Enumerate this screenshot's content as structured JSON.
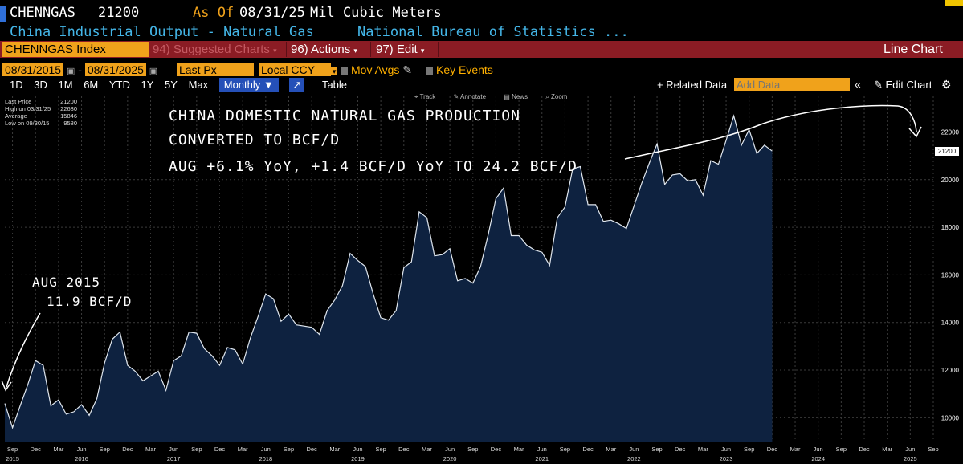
{
  "header": {
    "ticker": "CHENNGAS",
    "last_value": "21200",
    "as_of_label": "As Of",
    "as_of_date": "08/31/25",
    "units": "Mil Cubic Meters",
    "description": "China Industrial Output - Natural Gas",
    "source": "National Bureau of Statistics ..."
  },
  "menubar": {
    "index_name": "CHENNGAS Index",
    "suggested": "94) Suggested Charts",
    "actions": "96) Actions",
    "edit": "97) Edit",
    "chart_type": "Line Chart"
  },
  "controls": {
    "start_date": "08/31/2015",
    "end_date": "08/31/2025",
    "field": "Last Px",
    "currency": "Local CCY",
    "mov_avgs": "Mov Avgs",
    "key_events": "Key Events"
  },
  "toolbar": {
    "periods": [
      "1D",
      "3D",
      "1M",
      "6M",
      "YTD",
      "1Y",
      "5Y",
      "Max"
    ],
    "frequency": "Monthly",
    "table": "Table",
    "related": "+ Related Data",
    "add_data_placeholder": "Add Data",
    "edit_chart": "Edit Chart"
  },
  "chart_tools": [
    "Track",
    "Annotate",
    "News",
    "Zoom"
  ],
  "legend": {
    "rows": [
      {
        "label": "Last Price",
        "value": "21200"
      },
      {
        "label": "High on 03/31/25",
        "value": "22680"
      },
      {
        "label": "Average",
        "value": "15846"
      },
      {
        "label": "Low on 09/30/15",
        "value": "9580"
      }
    ]
  },
  "annotations": {
    "line1": "CHINA DOMESTIC NATURAL GAS PRODUCTION",
    "line2": "CONVERTED TO BCF/D",
    "line3": "AUG +6.1% YoY, +1.4 BCF/D YoY TO 24.2 BCF/D",
    "left1": "AUG 2015",
    "left2": "11.9 BCF/D"
  },
  "colors": {
    "line": "#dfe6ee",
    "fill": "#0e2240",
    "grid": "#3a3a3a",
    "price_tag": "#ffffff"
  },
  "chart_data": {
    "type": "area",
    "title": "China Industrial Output - Natural Gas",
    "ylabel": "Mil Cubic Meters",
    "ylim": [
      9000,
      23500
    ],
    "y_ticks": [
      10000,
      12000,
      14000,
      16000,
      18000,
      20000,
      22000
    ],
    "last_price_tag": "21200",
    "x_start": "2015-08",
    "x_ticks": [
      {
        "month": "Sep",
        "year": "2015",
        "i": 1
      },
      {
        "month": "Dec",
        "year": "",
        "i": 4
      },
      {
        "month": "Mar",
        "year": "",
        "i": 7
      },
      {
        "month": "Jun",
        "year": "2016",
        "i": 10
      },
      {
        "month": "Sep",
        "year": "",
        "i": 13
      },
      {
        "month": "Dec",
        "year": "",
        "i": 16
      },
      {
        "month": "Mar",
        "year": "",
        "i": 19
      },
      {
        "month": "Jun",
        "year": "2017",
        "i": 22
      },
      {
        "month": "Sep",
        "year": "",
        "i": 25
      },
      {
        "month": "Dec",
        "year": "",
        "i": 28
      },
      {
        "month": "Mar",
        "year": "",
        "i": 31
      },
      {
        "month": "Jun",
        "year": "2018",
        "i": 34
      },
      {
        "month": "Sep",
        "year": "",
        "i": 37
      },
      {
        "month": "Dec",
        "year": "",
        "i": 40
      },
      {
        "month": "Mar",
        "year": "",
        "i": 43
      },
      {
        "month": "Jun",
        "year": "2019",
        "i": 46
      },
      {
        "month": "Sep",
        "year": "",
        "i": 49
      },
      {
        "month": "Dec",
        "year": "",
        "i": 52
      },
      {
        "month": "Mar",
        "year": "",
        "i": 55
      },
      {
        "month": "Jun",
        "year": "2020",
        "i": 58
      },
      {
        "month": "Sep",
        "year": "",
        "i": 61
      },
      {
        "month": "Dec",
        "year": "",
        "i": 64
      },
      {
        "month": "Mar",
        "year": "",
        "i": 67
      },
      {
        "month": "Jun",
        "year": "2021",
        "i": 70
      },
      {
        "month": "Sep",
        "year": "",
        "i": 73
      },
      {
        "month": "Dec",
        "year": "",
        "i": 76
      },
      {
        "month": "Mar",
        "year": "",
        "i": 79
      },
      {
        "month": "Jun",
        "year": "2022",
        "i": 82
      },
      {
        "month": "Sep",
        "year": "",
        "i": 85
      },
      {
        "month": "Dec",
        "year": "",
        "i": 88
      },
      {
        "month": "Mar",
        "year": "",
        "i": 91
      },
      {
        "month": "Jun",
        "year": "2023",
        "i": 94
      },
      {
        "month": "Sep",
        "year": "",
        "i": 97
      },
      {
        "month": "Dec",
        "year": "",
        "i": 100
      },
      {
        "month": "Mar",
        "year": "",
        "i": 103
      },
      {
        "month": "Jun",
        "year": "2024",
        "i": 106
      },
      {
        "month": "Sep",
        "year": "",
        "i": 109
      },
      {
        "month": "Dec",
        "year": "",
        "i": 112
      },
      {
        "month": "Mar",
        "year": "",
        "i": 115
      },
      {
        "month": "Jun",
        "year": "2025",
        "i": 118
      },
      {
        "month": "Sep",
        "year": "",
        "i": 121
      }
    ],
    "x_index_max": 121,
    "values": [
      10600,
      9580,
      10500,
      11400,
      12400,
      12200,
      10500,
      10750,
      10150,
      10250,
      10550,
      10100,
      10800,
      12300,
      13300,
      13600,
      12200,
      11950,
      11550,
      11750,
      11950,
      11150,
      12400,
      12600,
      13600,
      13550,
      12900,
      12600,
      12200,
      12950,
      12850,
      12250,
      13350,
      14250,
      15200,
      15000,
      14050,
      14350,
      13900,
      13850,
      13800,
      13500,
      14500,
      14950,
      15550,
      16900,
      16600,
      16350,
      15200,
      14200,
      14100,
      14500,
      16300,
      16550,
      18650,
      18400,
      16800,
      16850,
      17100,
      15750,
      15850,
      15650,
      16350,
      17700,
      19200,
      19650,
      17650,
      17650,
      17250,
      17050,
      16950,
      16400,
      18400,
      18850,
      20450,
      20550,
      18950,
      18950,
      18250,
      18300,
      18150,
      17950,
      18900,
      19850,
      20700,
      21500,
      19800,
      20200,
      20250,
      19950,
      20000,
      19350,
      20800,
      20650,
      21650,
      22680,
      21450,
      22100,
      21100,
      21450,
      21200
    ]
  }
}
